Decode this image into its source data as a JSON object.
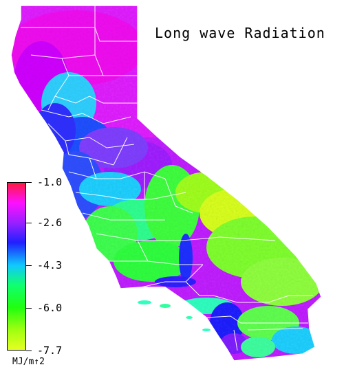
{
  "map": {
    "title": "Long wave Radiation",
    "region": "California",
    "colors": {
      "ocean": "#ffffff",
      "county_border": "#ffffff"
    }
  },
  "legend": {
    "unit": "MJ/m↑2",
    "range": [
      -7.7,
      -1.0
    ],
    "ticks": [
      "-1.0",
      "-2.6",
      "-4.3",
      "-6.0",
      "-7.7"
    ],
    "tick_values": [
      -1.0,
      -2.6,
      -4.3,
      -6.0,
      -7.7
    ],
    "gradient_stops": [
      {
        "value": -1.0,
        "color": "#ff1a40"
      },
      {
        "value": -1.8,
        "color": "#ff10ff"
      },
      {
        "value": -2.6,
        "color": "#9a20ff"
      },
      {
        "value": -3.4,
        "color": "#2020ff"
      },
      {
        "value": -4.3,
        "color": "#10c8ff"
      },
      {
        "value": -5.1,
        "color": "#10ff70"
      },
      {
        "value": -6.0,
        "color": "#20ff10"
      },
      {
        "value": -6.9,
        "color": "#a0ff10"
      },
      {
        "value": -7.7,
        "color": "#e6ff20"
      }
    ]
  }
}
